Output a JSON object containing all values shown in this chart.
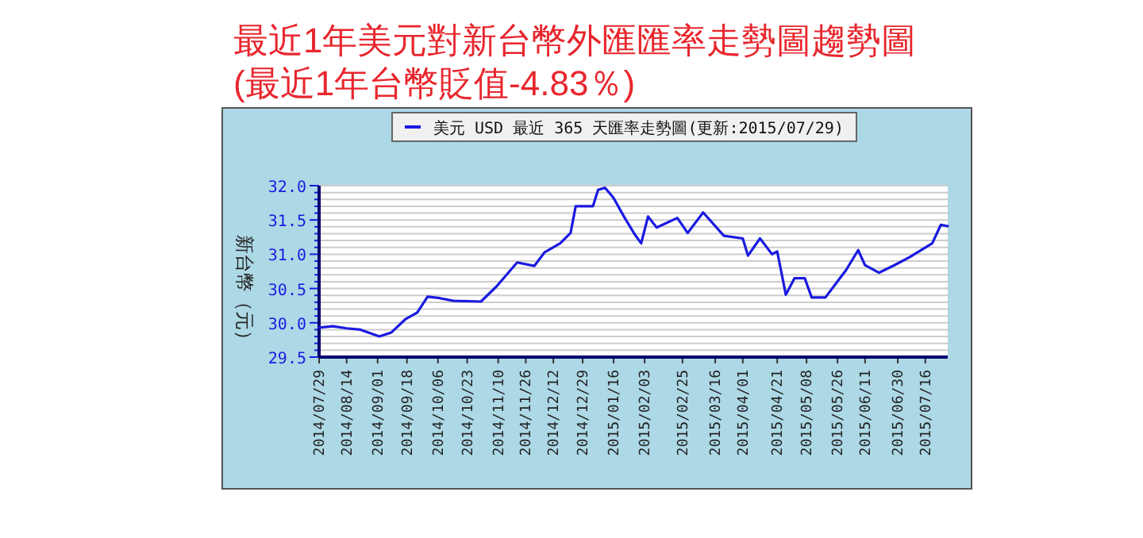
{
  "chart_data": {
    "type": "line",
    "title": "最近1年美元對新台幣外匯匯率走勢圖趨勢圖",
    "subtitle": "(最近1年台幣貶值-4.83％)",
    "ylabel": "新台幣（元）",
    "x": [
      "2014-07-29",
      "2014-08-06",
      "2014-08-14",
      "2014-08-22",
      "2014-09-02",
      "2014-09-09",
      "2014-09-17",
      "2014-09-24",
      "2014-09-30",
      "2014-10-07",
      "2014-10-15",
      "2014-10-31",
      "2014-11-09",
      "2014-11-21",
      "2014-12-01",
      "2014-12-07",
      "2014-12-16",
      "2014-12-22",
      "2014-12-25",
      "2015-01-04",
      "2015-01-07",
      "2015-01-11",
      "2015-01-16",
      "2015-01-22",
      "2015-01-28",
      "2015-02-01",
      "2015-02-05",
      "2015-02-10",
      "2015-02-22",
      "2015-02-28",
      "2015-03-09",
      "2015-03-21",
      "2015-04-01",
      "2015-04-04",
      "2015-04-11",
      "2015-04-18",
      "2015-04-21",
      "2015-04-26",
      "2015-05-01",
      "2015-05-07",
      "2015-05-11",
      "2015-05-19",
      "2015-05-25",
      "2015-05-31",
      "2015-06-07",
      "2015-06-11",
      "2015-06-19",
      "2015-06-28",
      "2015-07-07",
      "2015-07-20",
      "2015-07-25",
      "2015-07-29"
    ],
    "series": [
      {
        "name": "美元 USD 最近 365 天匯率走勢圖(更新:2015/07/29)",
        "color": "#1a1ae0",
        "values": [
          29.93,
          29.95,
          29.92,
          29.9,
          29.8,
          29.86,
          30.05,
          30.15,
          30.38,
          30.36,
          30.32,
          30.31,
          30.53,
          30.88,
          30.83,
          31.03,
          31.16,
          31.31,
          31.7,
          31.7,
          31.94,
          31.97,
          31.82,
          31.55,
          31.3,
          31.16,
          31.55,
          31.39,
          31.53,
          31.31,
          31.61,
          31.27,
          31.23,
          30.98,
          31.23,
          31.0,
          31.04,
          30.41,
          30.65,
          30.65,
          30.37,
          30.37,
          30.57,
          30.77,
          31.06,
          30.84,
          30.73,
          30.84,
          30.96,
          31.16,
          31.43,
          31.41
        ]
      }
    ],
    "xlim": [
      "2014-07-29",
      "2015-07-29"
    ],
    "xticks": [
      {
        "value": "2014-07-29",
        "label": "2014/07/29"
      },
      {
        "value": "2014-08-14",
        "label": "2014/08/14"
      },
      {
        "value": "2014-09-01",
        "label": "2014/09/01"
      },
      {
        "value": "2014-09-18",
        "label": "2014/09/18"
      },
      {
        "value": "2014-10-06",
        "label": "2014/10/06"
      },
      {
        "value": "2014-10-23",
        "label": "2014/10/23"
      },
      {
        "value": "2014-11-10",
        "label": "2014/11/10"
      },
      {
        "value": "2014-11-26",
        "label": "2014/11/26"
      },
      {
        "value": "2014-12-12",
        "label": "2014/12/12"
      },
      {
        "value": "2014-12-29",
        "label": "2014/12/29"
      },
      {
        "value": "2015-01-16",
        "label": "2015/01/16"
      },
      {
        "value": "2015-02-03",
        "label": "2015/02/03"
      },
      {
        "value": "2015-02-25",
        "label": "2015/02/25"
      },
      {
        "value": "2015-03-16",
        "label": "2015/03/16"
      },
      {
        "value": "2015-04-01",
        "label": "2015/04/01"
      },
      {
        "value": "2015-04-21",
        "label": "2015/04/21"
      },
      {
        "value": "2015-05-08",
        "label": "2015/05/08"
      },
      {
        "value": "2015-05-26",
        "label": "2015/05/26"
      },
      {
        "value": "2015-06-11",
        "label": "2015/06/11"
      },
      {
        "value": "2015-06-30",
        "label": "2015/06/30"
      },
      {
        "value": "2015-07-16",
        "label": "2015/07/16"
      }
    ],
    "ylim": [
      29.5,
      32.0
    ],
    "yticks": [
      {
        "value": 29.5,
        "label": "29.5"
      },
      {
        "value": 29.6,
        "label": null
      },
      {
        "value": 29.7,
        "label": null
      },
      {
        "value": 29.8,
        "label": null
      },
      {
        "value": 29.9,
        "label": null
      },
      {
        "value": 30.0,
        "label": "30.0"
      },
      {
        "value": 30.1,
        "label": null
      },
      {
        "value": 30.2,
        "label": null
      },
      {
        "value": 30.3,
        "label": null
      },
      {
        "value": 30.4,
        "label": null
      },
      {
        "value": 30.5,
        "label": "30.5"
      },
      {
        "value": 30.6,
        "label": null
      },
      {
        "value": 30.7,
        "label": null
      },
      {
        "value": 30.8,
        "label": null
      },
      {
        "value": 30.9,
        "label": null
      },
      {
        "value": 31.0,
        "label": "31.0"
      },
      {
        "value": 31.1,
        "label": null
      },
      {
        "value": 31.2,
        "label": null
      },
      {
        "value": 31.3,
        "label": null
      },
      {
        "value": 31.4,
        "label": null
      },
      {
        "value": 31.5,
        "label": "31.5"
      },
      {
        "value": 31.6,
        "label": null
      },
      {
        "value": 31.7,
        "label": null
      },
      {
        "value": 31.8,
        "label": null
      },
      {
        "value": 31.9,
        "label": null
      },
      {
        "value": 32.0,
        "label": "32.0"
      }
    ],
    "grid": "y",
    "legend": "top",
    "marker": "none",
    "line_style": "solid"
  }
}
